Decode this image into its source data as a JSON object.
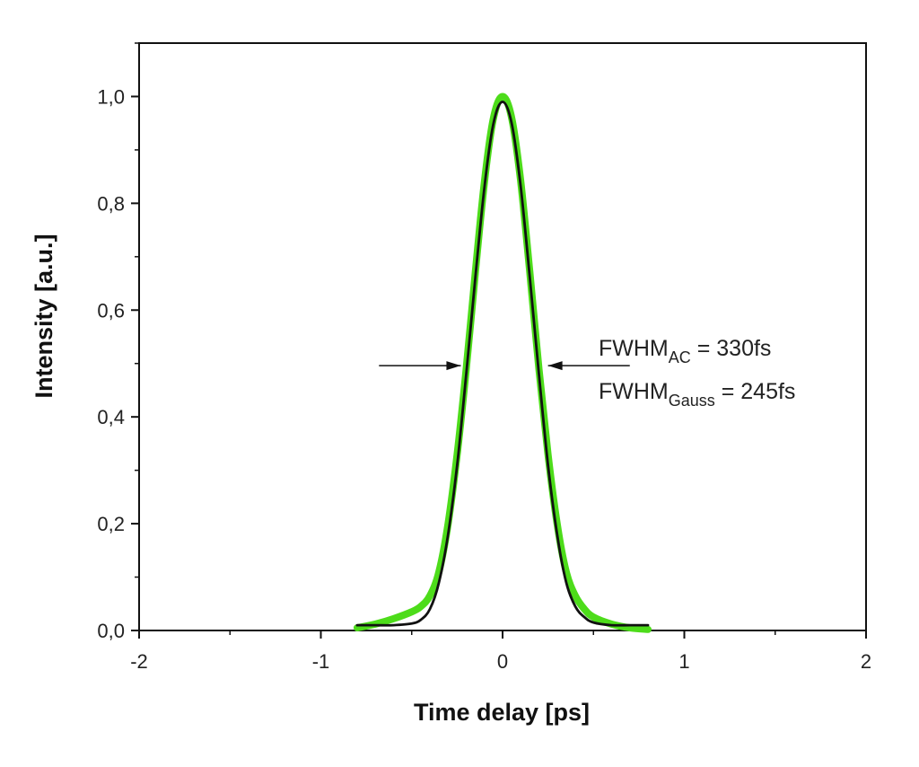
{
  "chart_data": {
    "type": "line",
    "title": "",
    "xlabel": "Time delay [ps]",
    "ylabel": "Intensity [a.u.]",
    "xlim": [
      -2,
      2
    ],
    "ylim": [
      0,
      1.1
    ],
    "x_ticks": [
      "-2",
      "-1",
      "0",
      "1",
      "2"
    ],
    "y_ticks": [
      "0,0",
      "0,2",
      "0,4",
      "0,6",
      "0,8",
      "1,0"
    ],
    "x_tick_values": [
      -2,
      -1,
      0,
      1,
      2
    ],
    "y_tick_values": [
      0,
      0.2,
      0.4,
      0.6,
      0.8,
      1.0
    ],
    "grid": false,
    "legend": "none",
    "series": [
      {
        "color": "#4ddc1a",
        "x": [
          -0.8,
          -0.7,
          -0.6,
          -0.5,
          -0.45,
          -0.4,
          -0.35,
          -0.3,
          -0.25,
          -0.2,
          -0.15,
          -0.1,
          -0.05,
          0.0,
          0.05,
          0.1,
          0.15,
          0.2,
          0.25,
          0.3,
          0.35,
          0.4,
          0.45,
          0.5,
          0.6,
          0.7,
          0.8
        ],
        "y": [
          0.005,
          0.012,
          0.022,
          0.035,
          0.045,
          0.065,
          0.11,
          0.2,
          0.33,
          0.49,
          0.67,
          0.84,
          0.96,
          1.0,
          0.96,
          0.84,
          0.67,
          0.49,
          0.33,
          0.2,
          0.11,
          0.065,
          0.04,
          0.025,
          0.012,
          0.005,
          0.002
        ]
      },
      {
        "color": "#111111",
        "x": [
          -0.8,
          -0.7,
          -0.6,
          -0.5,
          -0.45,
          -0.4,
          -0.35,
          -0.3,
          -0.25,
          -0.2,
          -0.15,
          -0.1,
          -0.05,
          0.0,
          0.05,
          0.1,
          0.15,
          0.2,
          0.25,
          0.3,
          0.35,
          0.4,
          0.45,
          0.5,
          0.6,
          0.7,
          0.8
        ],
        "y": [
          0.01,
          0.01,
          0.01,
          0.013,
          0.02,
          0.04,
          0.09,
          0.18,
          0.31,
          0.48,
          0.66,
          0.83,
          0.95,
          0.99,
          0.95,
          0.83,
          0.66,
          0.48,
          0.31,
          0.18,
          0.09,
          0.045,
          0.025,
          0.015,
          0.01,
          0.01,
          0.01
        ]
      }
    ],
    "annotations": [
      {
        "main": "FWHM",
        "sub": "AC",
        "rest": " = 330fs"
      },
      {
        "main": "FWHM",
        "sub": "Gauss",
        "rest": " = 245fs"
      }
    ],
    "arrows": [
      {
        "from_x": -0.68,
        "to_x": -0.23,
        "y": 0.496
      },
      {
        "from_x": 0.7,
        "to_x": 0.25,
        "y": 0.496
      }
    ]
  }
}
